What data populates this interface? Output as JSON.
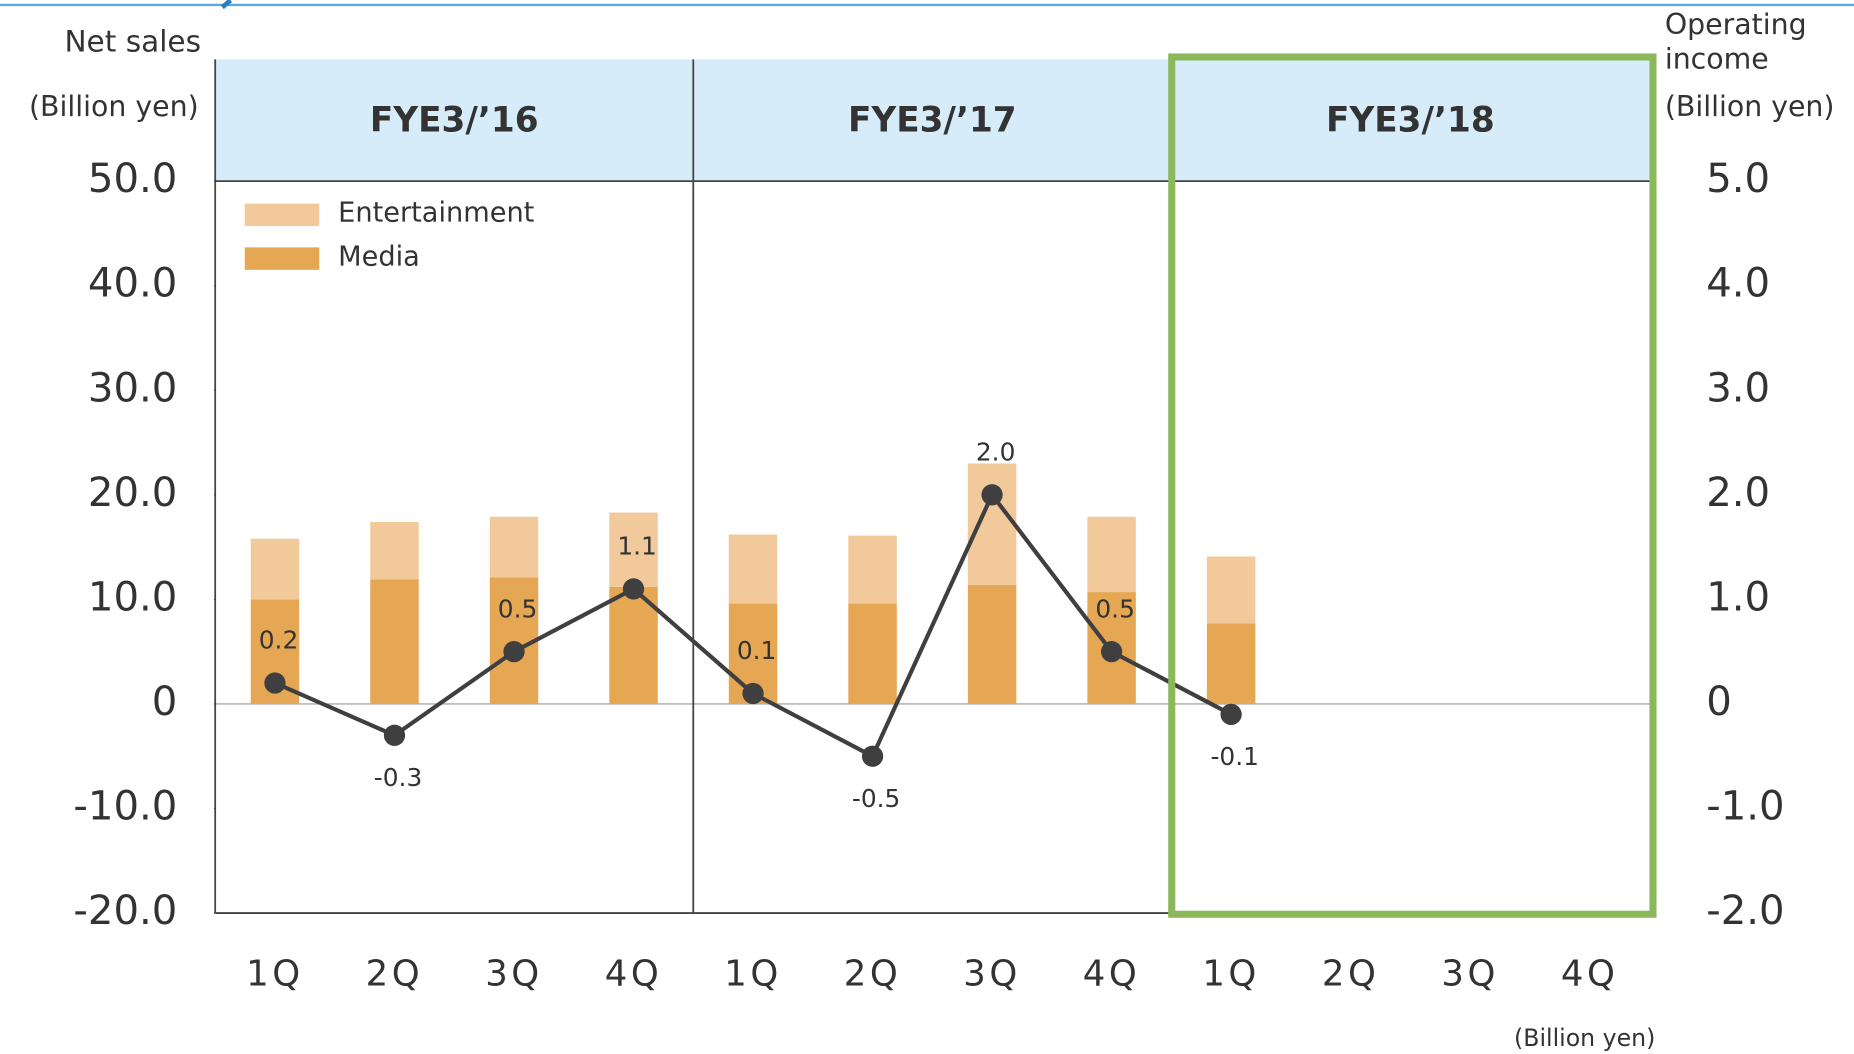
{
  "chart_data": {
    "type": "bar",
    "ylabel": [
      "Net sales",
      "(Billion yen)"
    ],
    "y2label": [
      "Operating",
      "income",
      "(Billion yen)"
    ],
    "note": "(Billion yen)",
    "periods": [
      "FYE3/’16",
      "FYE3/’17",
      "FYE3/’18"
    ],
    "categories": [
      "1Q",
      "2Q",
      "3Q",
      "4Q",
      "1Q",
      "2Q",
      "3Q",
      "4Q",
      "1Q",
      "2Q",
      "3Q",
      "4Q"
    ],
    "series": [
      {
        "name": "Media",
        "type": "bar",
        "color": "#e6a755",
        "values": [
          10.0,
          11.9,
          12.1,
          11.2,
          9.6,
          9.6,
          11.4,
          10.7,
          7.7,
          null,
          null,
          null
        ]
      },
      {
        "name": "Entertainment",
        "type": "bar",
        "color": "#f2c99a",
        "values": [
          5.8,
          5.5,
          5.8,
          7.1,
          6.6,
          6.5,
          11.6,
          7.2,
          6.4,
          null,
          null,
          null
        ]
      },
      {
        "name": "Operating income",
        "type": "line",
        "axis": "y2",
        "color": "#3f3f3f",
        "values": [
          0.2,
          -0.3,
          0.5,
          1.1,
          0.1,
          -0.5,
          2.0,
          0.5,
          -0.1,
          null,
          null,
          null
        ],
        "value_labels": [
          "0.2",
          "-0.3",
          "0.5",
          "1.1",
          "0.1",
          "-0.5",
          "2.0",
          "0.5",
          "-0.1",
          null,
          null,
          null
        ]
      }
    ],
    "ylim": [
      -20,
      50
    ],
    "yticks": [
      {
        "value": -20,
        "label": "-20.0"
      },
      {
        "value": -10,
        "label": "-10.0"
      },
      0,
      {
        "value": 10,
        "label": "10.0"
      },
      {
        "value": 20,
        "label": "20.0"
      },
      {
        "value": 30,
        "label": "30.0"
      },
      {
        "value": 40,
        "label": "40.0"
      },
      {
        "value": 50,
        "label": "50.0"
      }
    ],
    "y2lim": [
      -2,
      5
    ],
    "y2ticks": [
      {
        "value": -2,
        "label": "-2.0"
      },
      {
        "value": -1,
        "label": "-1.0"
      },
      0,
      {
        "value": 1,
        "label": "1.0"
      },
      {
        "value": 2,
        "label": "2.0"
      },
      {
        "value": 3,
        "label": "3.0"
      },
      {
        "value": 4,
        "label": "4.0"
      },
      {
        "value": 5,
        "label": "5.0"
      }
    ],
    "legend": "upper left"
  }
}
